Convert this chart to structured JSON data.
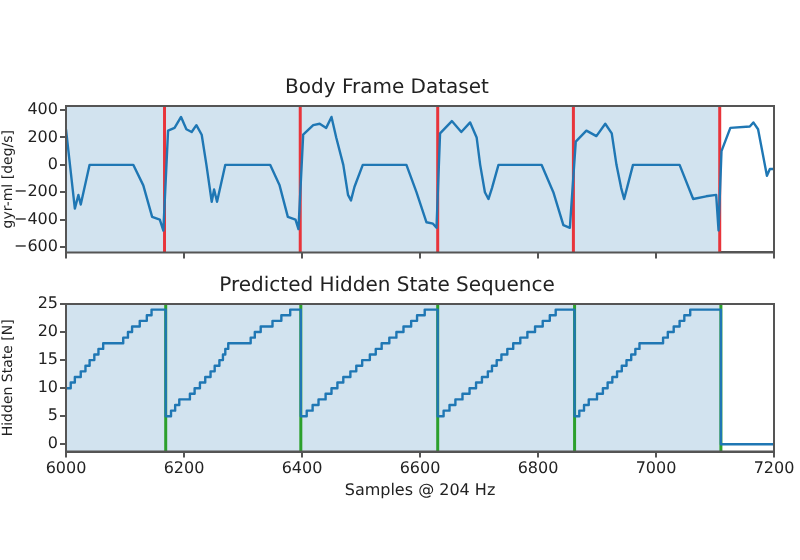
{
  "chart_data": [
    {
      "type": "line",
      "title": "Body Frame Dataset",
      "ylabel": "gyr-ml [deg/s]",
      "xlim": [
        6000,
        7200
      ],
      "xticks": [
        6000,
        6200,
        6400,
        6600,
        6800,
        7000,
        7200
      ],
      "ylim": [
        -640,
        430
      ],
      "yticks": [
        -600,
        -400,
        -200,
        0,
        200,
        400
      ],
      "tick_labels": "y",
      "grid": false,
      "legend": false,
      "series": [
        {
          "color": "#1f77b4",
          "x": [
            6000,
            6015,
            6021,
            6025,
            6040,
            6114,
            6131,
            6146,
            6159,
            6165,
            6173,
            6184,
            6195,
            6204,
            6213,
            6221,
            6230,
            6238,
            6247,
            6251,
            6256,
            6270,
            6346,
            6362,
            6376,
            6389,
            6394,
            6402,
            6419,
            6430,
            6441,
            6450,
            6458,
            6470,
            6478,
            6483,
            6489,
            6503,
            6577,
            6594,
            6611,
            6622,
            6628,
            6634,
            6654,
            6670,
            6685,
            6696,
            6702,
            6710,
            6716,
            6722,
            6733,
            6806,
            6826,
            6843,
            6854,
            6864,
            6882,
            6899,
            6914,
            6925,
            6933,
            6941,
            6946,
            6952,
            6961,
            7040,
            7063,
            7085,
            7102,
            7106,
            7111,
            7126,
            7159,
            7165,
            7173,
            7188,
            7193,
            7200
          ],
          "values": [
            260,
            -320,
            -220,
            -290,
            0,
            0,
            -150,
            -380,
            -400,
            -480,
            250,
            270,
            350,
            260,
            240,
            290,
            220,
            0,
            -270,
            -180,
            -270,
            0,
            0,
            -150,
            -380,
            -400,
            -470,
            220,
            290,
            300,
            270,
            350,
            200,
            0,
            -220,
            -260,
            -160,
            0,
            0,
            -200,
            -420,
            -430,
            -460,
            230,
            320,
            240,
            310,
            200,
            0,
            -200,
            -250,
            -170,
            0,
            0,
            -200,
            -440,
            -460,
            170,
            250,
            210,
            300,
            230,
            0,
            -170,
            -250,
            -150,
            0,
            0,
            -250,
            -230,
            -220,
            -480,
            100,
            270,
            280,
            310,
            260,
            -80,
            -30,
            -30
          ]
        }
      ],
      "bands": [
        {
          "axis": "x",
          "from": 6000,
          "to": 6167,
          "color": "#d2e3ef"
        },
        {
          "axis": "x",
          "from": 6167,
          "to": 6397,
          "color": "#d2e3ef"
        },
        {
          "axis": "x",
          "from": 6397,
          "to": 6630,
          "color": "#d2e3ef"
        },
        {
          "axis": "x",
          "from": 6630,
          "to": 6860,
          "color": "#d2e3ef"
        },
        {
          "axis": "x",
          "from": 6860,
          "to": 7108,
          "color": "#d2e3ef"
        }
      ],
      "ref_lines": [
        {
          "axis": "x",
          "value": 6167,
          "color": "#e8343a"
        },
        {
          "axis": "x",
          "value": 6397,
          "color": "#e8343a"
        },
        {
          "axis": "x",
          "value": 6630,
          "color": "#e8343a"
        },
        {
          "axis": "x",
          "value": 6860,
          "color": "#e8343a"
        },
        {
          "axis": "x",
          "value": 7108,
          "color": "#e8343a"
        }
      ]
    },
    {
      "type": "step",
      "title": "Predicted Hidden State Sequence",
      "xlabel": "Samples @ 204 Hz",
      "ylabel": "Hidden State [N]",
      "xlim": [
        6000,
        7200
      ],
      "xticks": [
        6000,
        6200,
        6400,
        6600,
        6800,
        7000,
        7200
      ],
      "ylim": [
        -1.3,
        25
      ],
      "yticks": [
        0,
        5,
        10,
        15,
        20,
        25
      ],
      "grid": false,
      "legend": false,
      "series": [
        {
          "color": "#1f77b4",
          "x": [
            6000,
            6008,
            6015,
            6025,
            6033,
            6040,
            6048,
            6055,
            6063,
            6097,
            6105,
            6112,
            6125,
            6137,
            6145,
            6169,
            6178,
            6185,
            6192,
            6210,
            6218,
            6227,
            6236,
            6245,
            6252,
            6260,
            6266,
            6270,
            6275,
            6313,
            6320,
            6330,
            6350,
            6365,
            6380,
            6398,
            6408,
            6418,
            6428,
            6440,
            6450,
            6460,
            6470,
            6482,
            6492,
            6502,
            6515,
            6525,
            6535,
            6548,
            6560,
            6572,
            6585,
            6595,
            6608,
            6630,
            6640,
            6650,
            6660,
            6672,
            6684,
            6695,
            6705,
            6715,
            6722,
            6730,
            6738,
            6748,
            6758,
            6770,
            6782,
            6795,
            6808,
            6820,
            6830,
            6862,
            6870,
            6878,
            6886,
            6900,
            6910,
            6918,
            6926,
            6934,
            6942,
            6950,
            6958,
            6965,
            6972,
            7012,
            7020,
            7030,
            7040,
            7048,
            7058,
            7110,
            7200
          ],
          "values": [
            10,
            11,
            12,
            13,
            14,
            15,
            16,
            17,
            18,
            19,
            20,
            21,
            22,
            23,
            24,
            5,
            6,
            7,
            8,
            9,
            10,
            11,
            12,
            13,
            14,
            15,
            16,
            17,
            18,
            19,
            20,
            21,
            22,
            23,
            24,
            5,
            6,
            7,
            8,
            9,
            10,
            11,
            12,
            13,
            14,
            15,
            16,
            17,
            18,
            19,
            20,
            21,
            22,
            23,
            24,
            5,
            6,
            7,
            8,
            9,
            10,
            11,
            12,
            13,
            14,
            15,
            16,
            17,
            18,
            19,
            20,
            21,
            22,
            23,
            24,
            5,
            6,
            7,
            8,
            9,
            10,
            11,
            12,
            13,
            14,
            15,
            16,
            17,
            18,
            19,
            20,
            21,
            22,
            23,
            24,
            0,
            0
          ]
        }
      ],
      "bands": [
        {
          "axis": "x",
          "from": 6000,
          "to": 6169,
          "color": "#d2e3ef"
        },
        {
          "axis": "x",
          "from": 6169,
          "to": 6398,
          "color": "#d2e3ef"
        },
        {
          "axis": "x",
          "from": 6398,
          "to": 6630,
          "color": "#d2e3ef"
        },
        {
          "axis": "x",
          "from": 6630,
          "to": 6862,
          "color": "#d2e3ef"
        },
        {
          "axis": "x",
          "from": 6862,
          "to": 7110,
          "color": "#d2e3ef"
        }
      ],
      "ref_lines": [
        {
          "axis": "x",
          "value": 6169,
          "color": "#2ca02c"
        },
        {
          "axis": "x",
          "value": 6398,
          "color": "#2ca02c"
        },
        {
          "axis": "x",
          "value": 6630,
          "color": "#2ca02c"
        },
        {
          "axis": "x",
          "value": 6862,
          "color": "#2ca02c"
        },
        {
          "axis": "x",
          "value": 7110,
          "color": "#2ca02c"
        }
      ]
    }
  ]
}
